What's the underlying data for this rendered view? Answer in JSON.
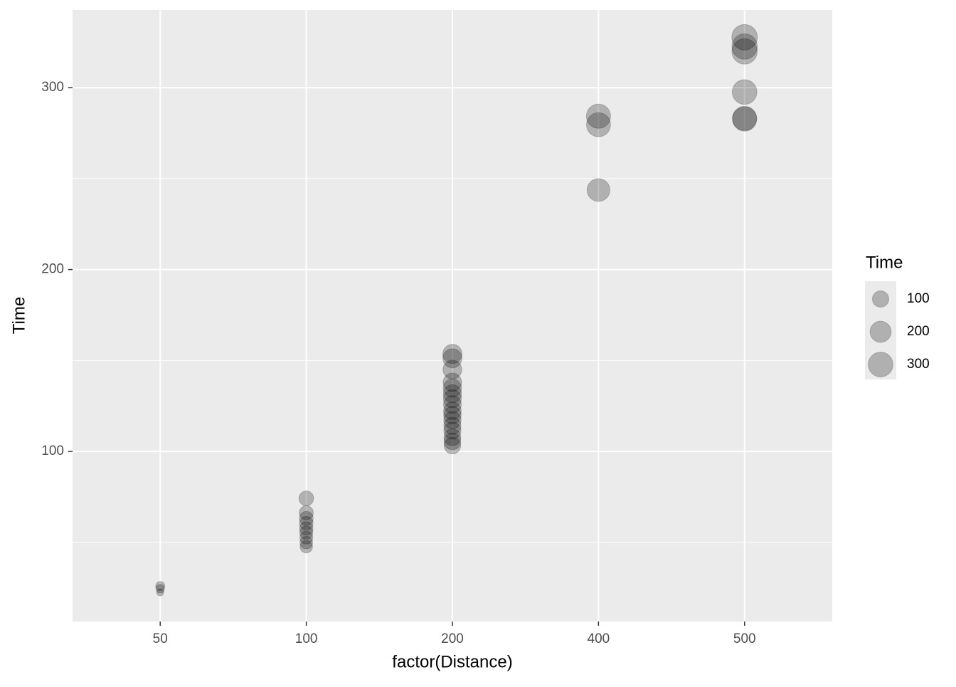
{
  "chart_data": {
    "type": "scatter",
    "x_label": "factor(Distance)",
    "y_label": "Time",
    "categories": [
      "50",
      "100",
      "200",
      "400",
      "500"
    ],
    "x": [
      "50",
      "50",
      "50",
      "100",
      "100",
      "100",
      "100",
      "100",
      "100",
      "100",
      "100",
      "100",
      "200",
      "200",
      "200",
      "200",
      "200",
      "200",
      "200",
      "200",
      "200",
      "200",
      "200",
      "200",
      "200",
      "200",
      "200",
      "200",
      "400",
      "400",
      "400",
      "500",
      "500",
      "500",
      "500",
      "500",
      "500"
    ],
    "y": [
      26.0,
      24.5,
      22.5,
      74.2,
      66.3,
      63.2,
      60.5,
      57.7,
      55.4,
      52.6,
      49.9,
      47.6,
      153.6,
      151.2,
      145.0,
      138.0,
      134.8,
      131.7,
      129.0,
      125.8,
      122.3,
      120.0,
      117.2,
      114.1,
      111.4,
      107.8,
      105.5,
      103.2,
      284.3,
      279.6,
      243.7,
      327.7,
      322.6,
      319.9,
      297.6,
      283.1,
      282.7
    ],
    "color": "#000000",
    "alpha": 0.25,
    "ylim": [
      6.5,
      342.7
    ],
    "yticks": [
      100,
      200,
      300
    ],
    "y_minor_grid": [
      50,
      150,
      250
    ],
    "grid": true,
    "size_legend": {
      "title": "Time",
      "breaks": [
        100,
        200,
        300
      ]
    }
  }
}
